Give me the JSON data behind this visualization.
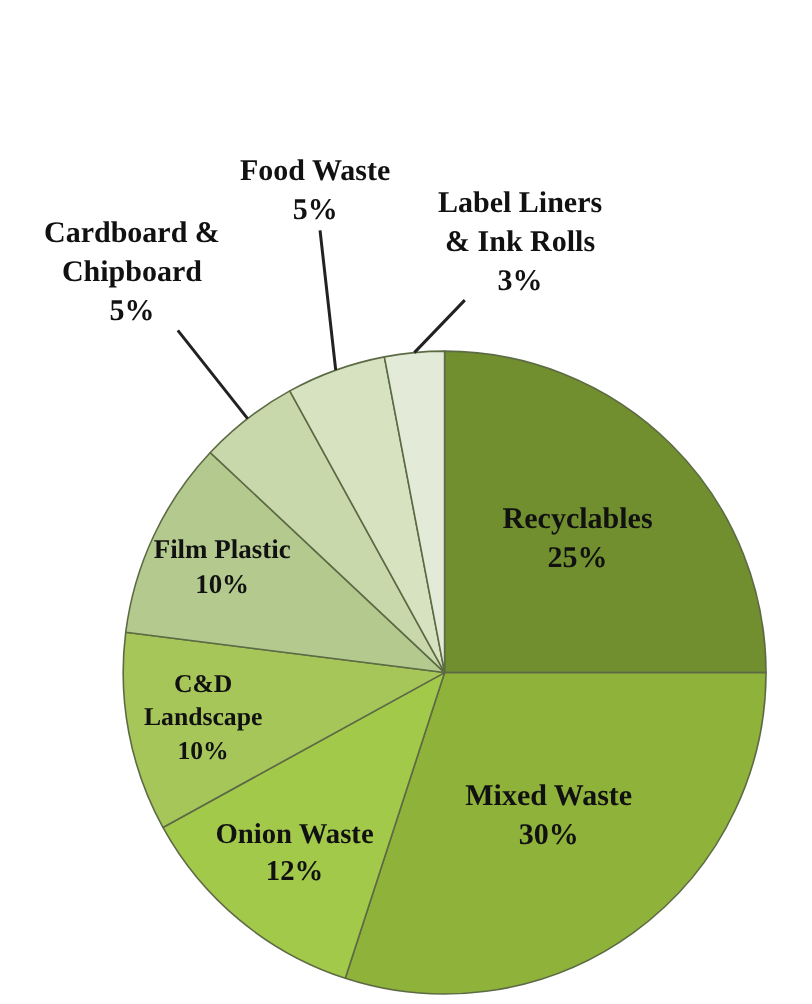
{
  "chart_data": {
    "type": "pie",
    "categories": [
      "Recyclables",
      "Mixed Waste",
      "Onion Waste",
      "C&D Landscape",
      "Film Plastic",
      "Cardboard & Chipboard",
      "Food Waste",
      "Label Liners & Ink Rolls"
    ],
    "values": [
      25,
      30,
      12,
      10,
      10,
      5,
      5,
      3
    ],
    "value_labels": [
      "25%",
      "30%",
      "12%",
      "10%",
      "10%",
      "5%",
      "5%",
      "3%"
    ],
    "colors": [
      "#718f2f",
      "#8fb23a",
      "#a3c94a",
      "#a6c65a",
      "#b3c98e",
      "#c8d8aa",
      "#d6e2c0",
      "#e3ead8"
    ]
  }
}
